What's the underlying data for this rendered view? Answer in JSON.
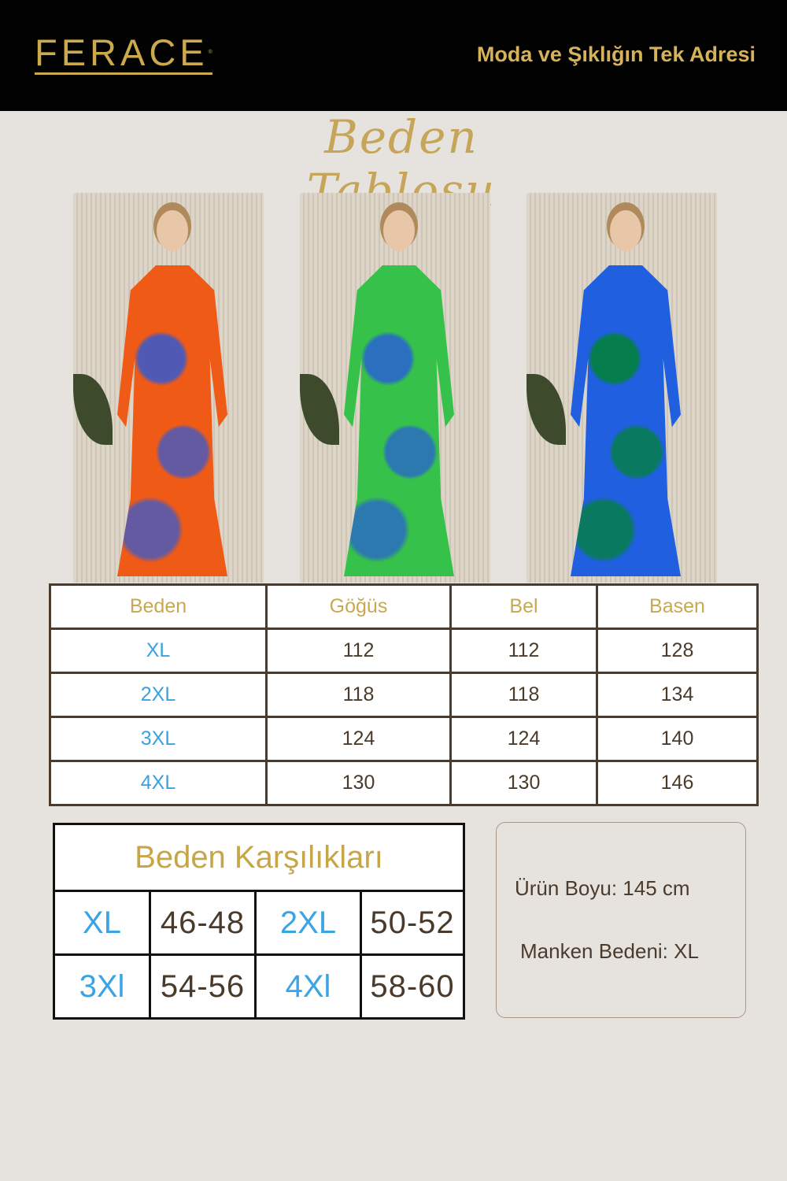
{
  "header": {
    "brand": "FERACE",
    "registered": "®",
    "tagline": "Moda ve Şıklığın Tek Adresi"
  },
  "title": "Beden Tablosu",
  "photos": [
    {
      "dress_color": "#ef5a17"
    },
    {
      "dress_color": "#36c24a"
    },
    {
      "dress_color": "#1f5fe0"
    }
  ],
  "size_table": {
    "headers": [
      "Beden",
      "Göğüs",
      "Bel",
      "Basen"
    ],
    "rows": [
      [
        "XL",
        "112",
        "112",
        "128"
      ],
      [
        "2XL",
        "118",
        "118",
        "134"
      ],
      [
        "3XL",
        "124",
        "124",
        "140"
      ],
      [
        "4XL",
        "130",
        "130",
        "146"
      ]
    ]
  },
  "equivalents": {
    "title": "Beden Karşılıkları",
    "rows": [
      [
        "XL",
        "46-48",
        "2XL",
        "50-52"
      ],
      [
        "3Xl",
        "54-56",
        "4Xl",
        "58-60"
      ]
    ]
  },
  "info": {
    "length": "Ürün Boyu: 145 cm",
    "model_size": "Manken Bedeni: XL"
  },
  "colors": {
    "gold": "#cda94e",
    "size_blue": "#38a2e3",
    "brown": "#4b3b2b",
    "background": "#e6e3df"
  }
}
